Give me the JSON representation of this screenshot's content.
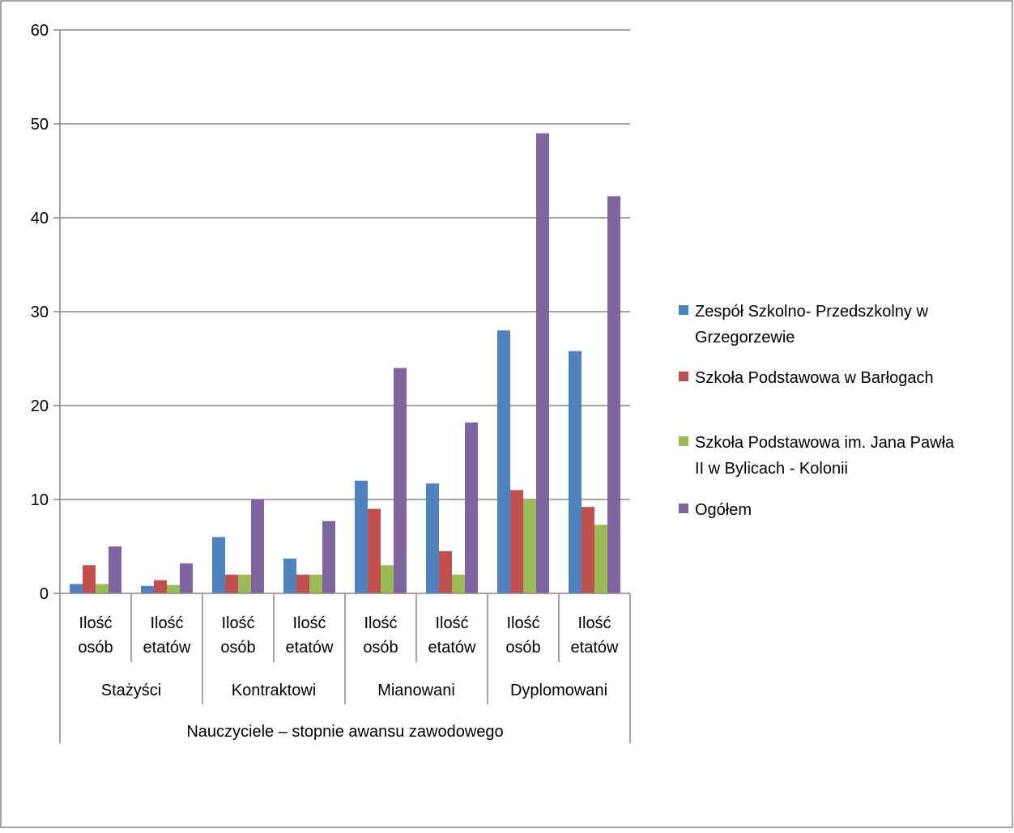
{
  "chart_data": {
    "type": "bar",
    "title": "",
    "xlabel": "",
    "ylabel": "",
    "ylim": [
      0,
      60
    ],
    "yticks": [
      0,
      10,
      20,
      30,
      40,
      50,
      60
    ],
    "grid": true,
    "legend_position": "right",
    "categories": [
      "Ilość osób",
      "Ilość etatów",
      "Ilość osób",
      "Ilość etatów",
      "Ilość osób",
      "Ilość etatów",
      "Ilość osób",
      "Ilość etatów"
    ],
    "category_lines": [
      [
        "Ilość",
        "osób"
      ],
      [
        "Ilość",
        "etatów"
      ],
      [
        "Ilość",
        "osób"
      ],
      [
        "Ilość",
        "etatów"
      ],
      [
        "Ilość",
        "osób"
      ],
      [
        "Ilość",
        "etatów"
      ],
      [
        "Ilość",
        "osób"
      ],
      [
        "Ilość",
        "etatów"
      ]
    ],
    "groups": [
      "Stażyści",
      "Kontraktowi",
      "Mianowani",
      "Dyplomowani"
    ],
    "super_group": "Nauczyciele – stopnie awansu zawodowego",
    "series": [
      {
        "name": "Zespół Szkolno- Przedszkolny w Grzegorzewie",
        "legend_lines": [
          "Zespół Szkolno- Przedszkolny w",
          "Grzegorzewie"
        ],
        "color": "#4F81BD",
        "values": [
          1,
          0.8,
          6,
          3.7,
          12,
          11.7,
          28,
          25.8
        ]
      },
      {
        "name": "Szkoła Podstawowa w Barłogach",
        "legend_lines": [
          "Szkoła Podstawowa w Barłogach"
        ],
        "color": "#C0504D",
        "values": [
          3,
          1.4,
          2,
          2,
          9,
          4.5,
          11,
          9.2
        ]
      },
      {
        "name": "Szkoła Podstawowa im. Jana Pawła II w Bylicach - Kolonii",
        "legend_lines": [
          "Szkoła Podstawowa im. Jana Pawła",
          "II w Bylicach - Kolonii"
        ],
        "color": "#9BBB59",
        "values": [
          1,
          0.9,
          2,
          2,
          3,
          2,
          10,
          7.3
        ]
      },
      {
        "name": "Ogółem",
        "legend_lines": [
          "Ogółem"
        ],
        "color": "#8064A2",
        "values": [
          5,
          3.2,
          10,
          7.7,
          24,
          18.2,
          49,
          42.3
        ]
      }
    ]
  }
}
